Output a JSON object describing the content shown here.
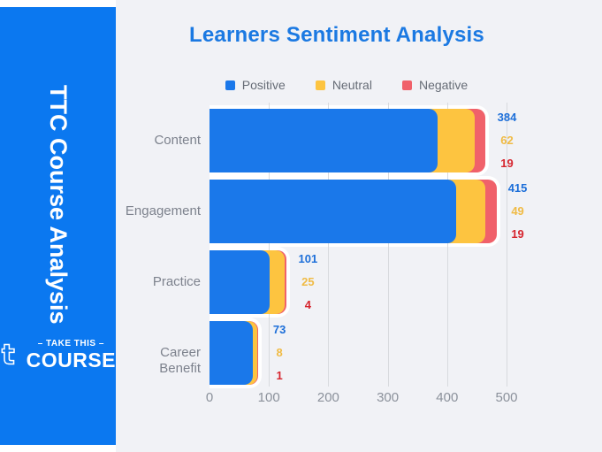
{
  "sidebar": {
    "vertical_title": "TTC Course Analysis",
    "logo": {
      "glyph": "t",
      "tagline": "– TAKE THIS –",
      "name": "COURSE"
    }
  },
  "chart_data": {
    "type": "bar",
    "orientation": "horizontal",
    "stacked": true,
    "title": "Learners Sentiment Analysis",
    "categories": [
      "Content",
      "Engagement",
      "Practice",
      "Career Benefit"
    ],
    "series": [
      {
        "name": "Positive",
        "color": "#1a78ea",
        "label_color": "#1d6fd9",
        "values": [
          384,
          415,
          101,
          73
        ]
      },
      {
        "name": "Neutral",
        "color": "#fdc440",
        "label_color": "#f0bb45",
        "values": [
          62,
          49,
          25,
          8
        ]
      },
      {
        "name": "Negative",
        "color": "#f0616a",
        "label_color": "#d6252e",
        "values": [
          19,
          19,
          4,
          1
        ]
      }
    ],
    "x_ticks": [
      0,
      100,
      200,
      300,
      400,
      500
    ],
    "xlim": [
      0,
      500
    ],
    "legend_position": "top",
    "grid": "vertical",
    "value_labels": true
  },
  "colors": {
    "sidebar_blue": "#0b78f0",
    "panel_bg": "#f1f2f6",
    "page_bg": "#ffffff",
    "title_blue": "#1b79e2",
    "category_text": "#7d828d",
    "axis_text": "#8b919b",
    "legend_text": "#666c76",
    "gridline": "#d8dade",
    "bar_outline": "#ffffff"
  }
}
